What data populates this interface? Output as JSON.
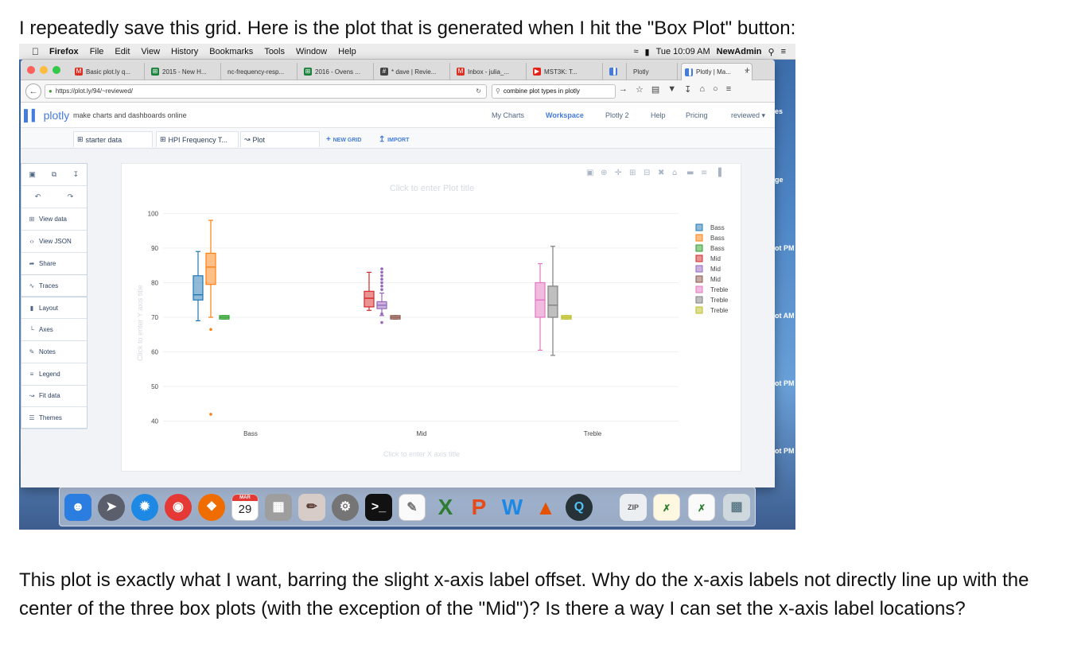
{
  "post": {
    "intro": "I repeatedly save this grid. Here is the plot that is generated when I hit the \"Box Plot\" button:",
    "question": "This plot is exactly what I want, barring the slight x-axis label offset. Why do the x-axis labels not directly line up with the center of the three box plots (with the exception of the \"Mid\")? Is there a way I can set the x-axis label locations?"
  },
  "menubar": {
    "items": [
      "Firefox",
      "File",
      "Edit",
      "View",
      "History",
      "Bookmarks",
      "Tools",
      "Window",
      "Help"
    ],
    "clock": "Tue 10:09 AM",
    "user": "NewAdmin"
  },
  "browser": {
    "tabs": [
      {
        "label": "Basic plot.ly q...",
        "icon": "gmail-icon",
        "color": "#d93025"
      },
      {
        "label": "2015 - New H...",
        "icon": "sheets-icon",
        "color": "#188038"
      },
      {
        "label": "nc-frequency-resp...",
        "icon": "",
        "color": ""
      },
      {
        "label": "2016 - Ovens ...",
        "icon": "sheets-icon",
        "color": "#188038"
      },
      {
        "label": "* dave | Revie...",
        "icon": "hash-icon",
        "color": "#444"
      },
      {
        "label": "Inbox - julia_...",
        "icon": "gmail-icon",
        "color": "#d93025"
      },
      {
        "label": "MST3K: T...",
        "icon": "youtube-icon",
        "color": "#e62117"
      },
      {
        "label": "",
        "icon": "plotly-icon",
        "color": "#447bdc"
      },
      {
        "label": "Plotly",
        "icon": "",
        "color": ""
      },
      {
        "label": "Plotly | Ma...",
        "icon": "plotly-icon",
        "color": "#447bdc",
        "active": true
      }
    ],
    "url": "https://plot.ly/94/~reviewed/",
    "search": "combine plot types in plotly"
  },
  "app": {
    "logo": "plotly",
    "tagline": "make charts and dashboards online",
    "nav": [
      "My Charts",
      "Workspace",
      "Plotly 2",
      "Help",
      "Pricing",
      "reviewed"
    ],
    "current_nav": "Workspace",
    "grid_tabs": [
      "starter data",
      "HPI Frequency T...",
      "Plot"
    ],
    "new_grid": "NEW GRID",
    "import": "IMPORT",
    "sidebar": [
      "View data",
      "View JSON",
      "Share",
      "Traces",
      "Layout",
      "Axes",
      "Notes",
      "Legend",
      "Fit data",
      "Themes"
    ],
    "plot_title_placeholder": "Click to enter Plot title",
    "x_title_placeholder": "Click to enter X axis title",
    "y_title_placeholder": "Click to enter Y axis title"
  },
  "chart_data": {
    "type": "box",
    "title": "",
    "xlabel": "",
    "ylabel": "",
    "categories": [
      "Bass",
      "Mid",
      "Treble"
    ],
    "ylim": [
      39,
      101
    ],
    "yticks": [
      40,
      50,
      60,
      70,
      80,
      90,
      100
    ],
    "grid": true,
    "legend_position": "right",
    "series": [
      {
        "name": "Bass",
        "color": "#1f77b4",
        "category": "Bass",
        "slot": 0,
        "min": 69,
        "q1": 75,
        "median": 76.5,
        "q3": 82,
        "max": 89,
        "outliers": []
      },
      {
        "name": "Bass",
        "color": "#ff7f0e",
        "category": "Bass",
        "slot": 1,
        "min": 70,
        "q1": 79.5,
        "median": 84.5,
        "q3": 88.5,
        "max": 98,
        "outliers": [
          66.5,
          42
        ]
      },
      {
        "name": "Bass",
        "color": "#2ca02c",
        "category": "Bass",
        "slot": 2,
        "min": 69.5,
        "q1": 69.5,
        "median": 70,
        "q3": 70.5,
        "max": 70.5,
        "outliers": []
      },
      {
        "name": "Mid",
        "color": "#d62728",
        "category": "Mid",
        "slot": 0,
        "min": 72,
        "q1": 73,
        "median": 75.5,
        "q3": 77.5,
        "max": 83,
        "outliers": []
      },
      {
        "name": "Mid",
        "color": "#9467bd",
        "category": "Mid",
        "slot": 1,
        "min": 70.5,
        "q1": 72.5,
        "median": 73.5,
        "q3": 74.5,
        "max": 77,
        "outliers": [
          68.5,
          71,
          78,
          79,
          80,
          81,
          82,
          83,
          84
        ]
      },
      {
        "name": "Mid",
        "color": "#8c564b",
        "category": "Mid",
        "slot": 2,
        "min": 69.5,
        "q1": 69.5,
        "median": 70,
        "q3": 70.5,
        "max": 70.5,
        "outliers": []
      },
      {
        "name": "Treble",
        "color": "#e377c2",
        "category": "Treble",
        "slot": 0,
        "min": 60.5,
        "q1": 70,
        "median": 75,
        "q3": 80,
        "max": 85.5,
        "outliers": []
      },
      {
        "name": "Treble",
        "color": "#7f7f7f",
        "category": "Treble",
        "slot": 1,
        "min": 59,
        "q1": 70,
        "median": 73.5,
        "q3": 79,
        "max": 90.5,
        "outliers": []
      },
      {
        "name": "Treble",
        "color": "#bcbd22",
        "category": "Treble",
        "slot": 2,
        "min": 69.5,
        "q1": 69.5,
        "median": 70,
        "q3": 70.5,
        "max": 70.5,
        "outliers": []
      }
    ]
  },
  "dock": {
    "calendar_month": "MAR",
    "calendar_day": "29"
  },
  "side_labels": [
    "es",
    "ge",
    "ot PM",
    "ot AM",
    "ot PM",
    "ot PM"
  ]
}
